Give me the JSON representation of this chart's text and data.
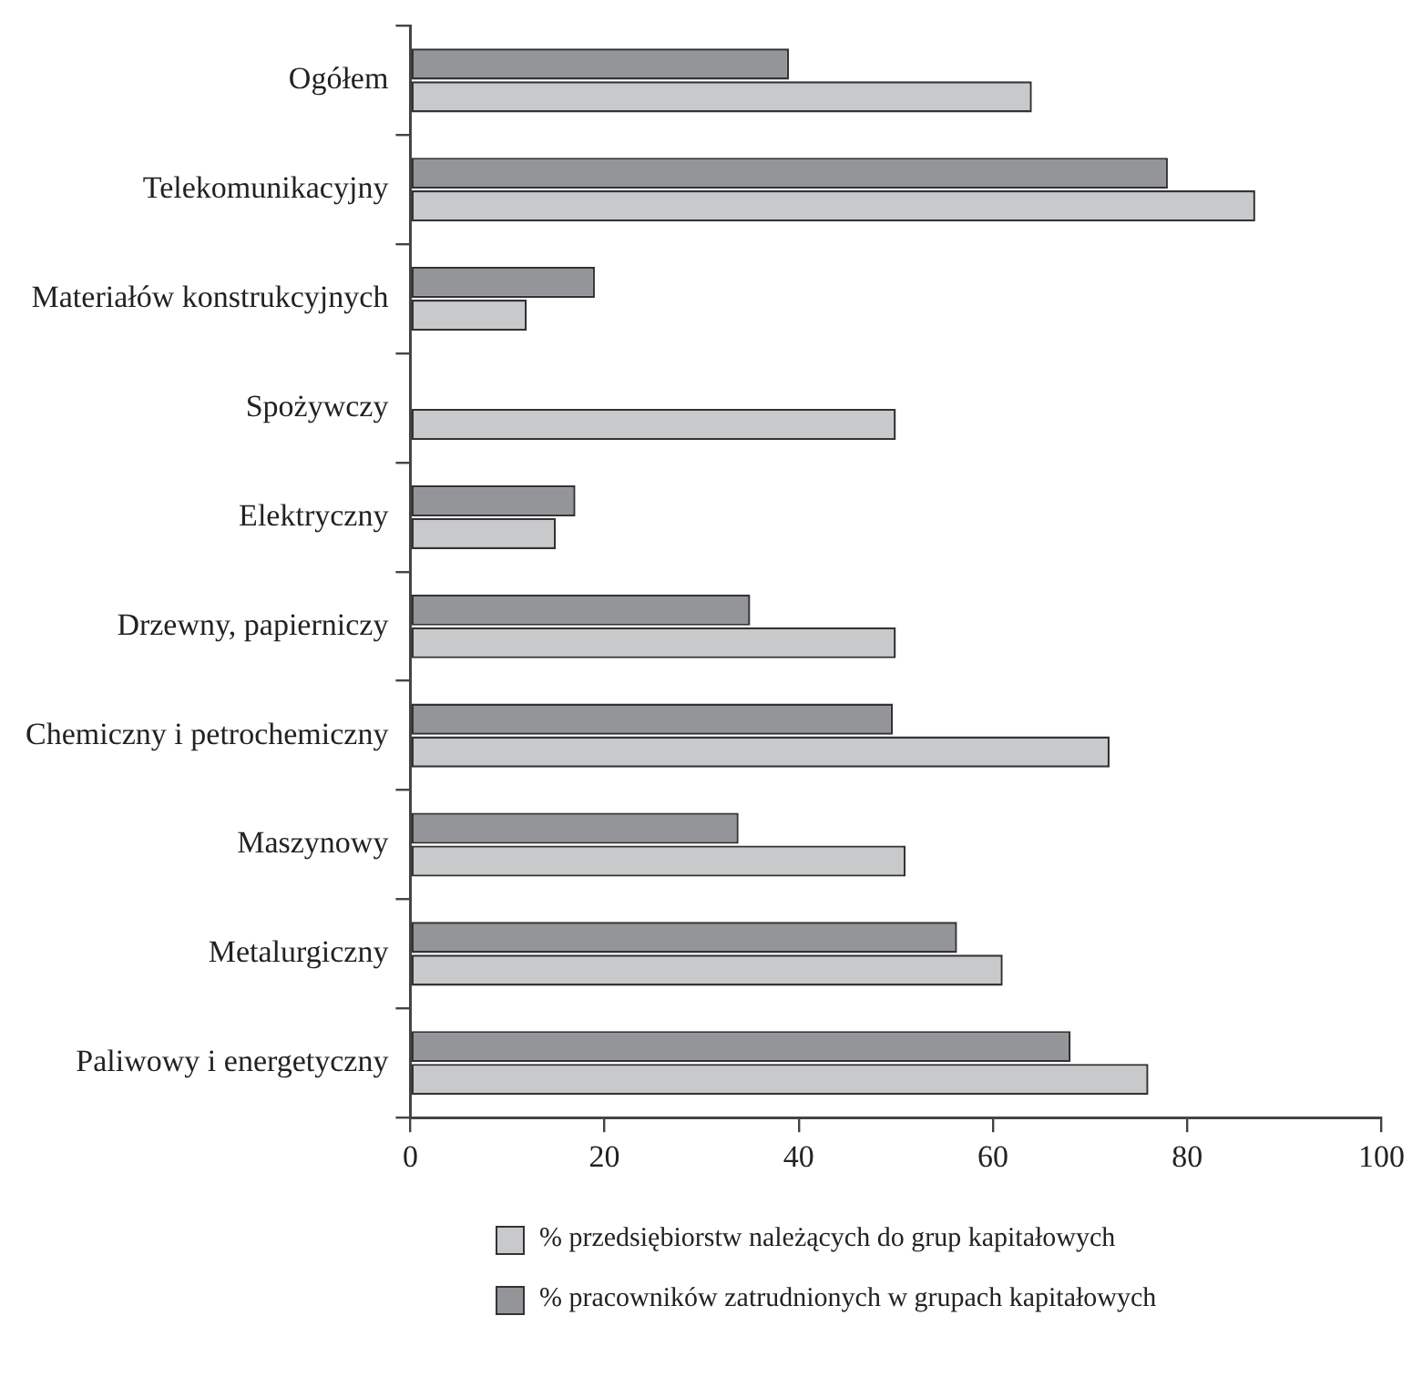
{
  "chart_data": {
    "type": "bar",
    "orientation": "horizontal",
    "categories": [
      "Ogółem",
      "Telekomunikacyjny",
      "Materiałów konstrukcyjnych",
      "Spożywczy",
      "Elektryczny",
      "Drzewny, papierniczy",
      "Chemiczny i petrochemiczny",
      "Maszynowy",
      "Metalurgiczny",
      "Paliwowy i energetyczny"
    ],
    "series": [
      {
        "name": "% pracowników zatrudnionych w grupach kapitałowych",
        "color": "#939598",
        "values": [
          39,
          78,
          19,
          null,
          17,
          35,
          49.7,
          33.8,
          56.3,
          68
        ]
      },
      {
        "name": "% przedsiębiorstw należących do grup kapitałowych",
        "color": "#c8c9cb",
        "values": [
          64,
          87,
          12,
          50,
          15,
          50,
          72,
          51,
          61,
          76
        ]
      }
    ],
    "xlim": [
      0,
      100
    ],
    "xticks": [
      0,
      20,
      40,
      60,
      80,
      100
    ],
    "grid": false,
    "legend": "bottom"
  }
}
